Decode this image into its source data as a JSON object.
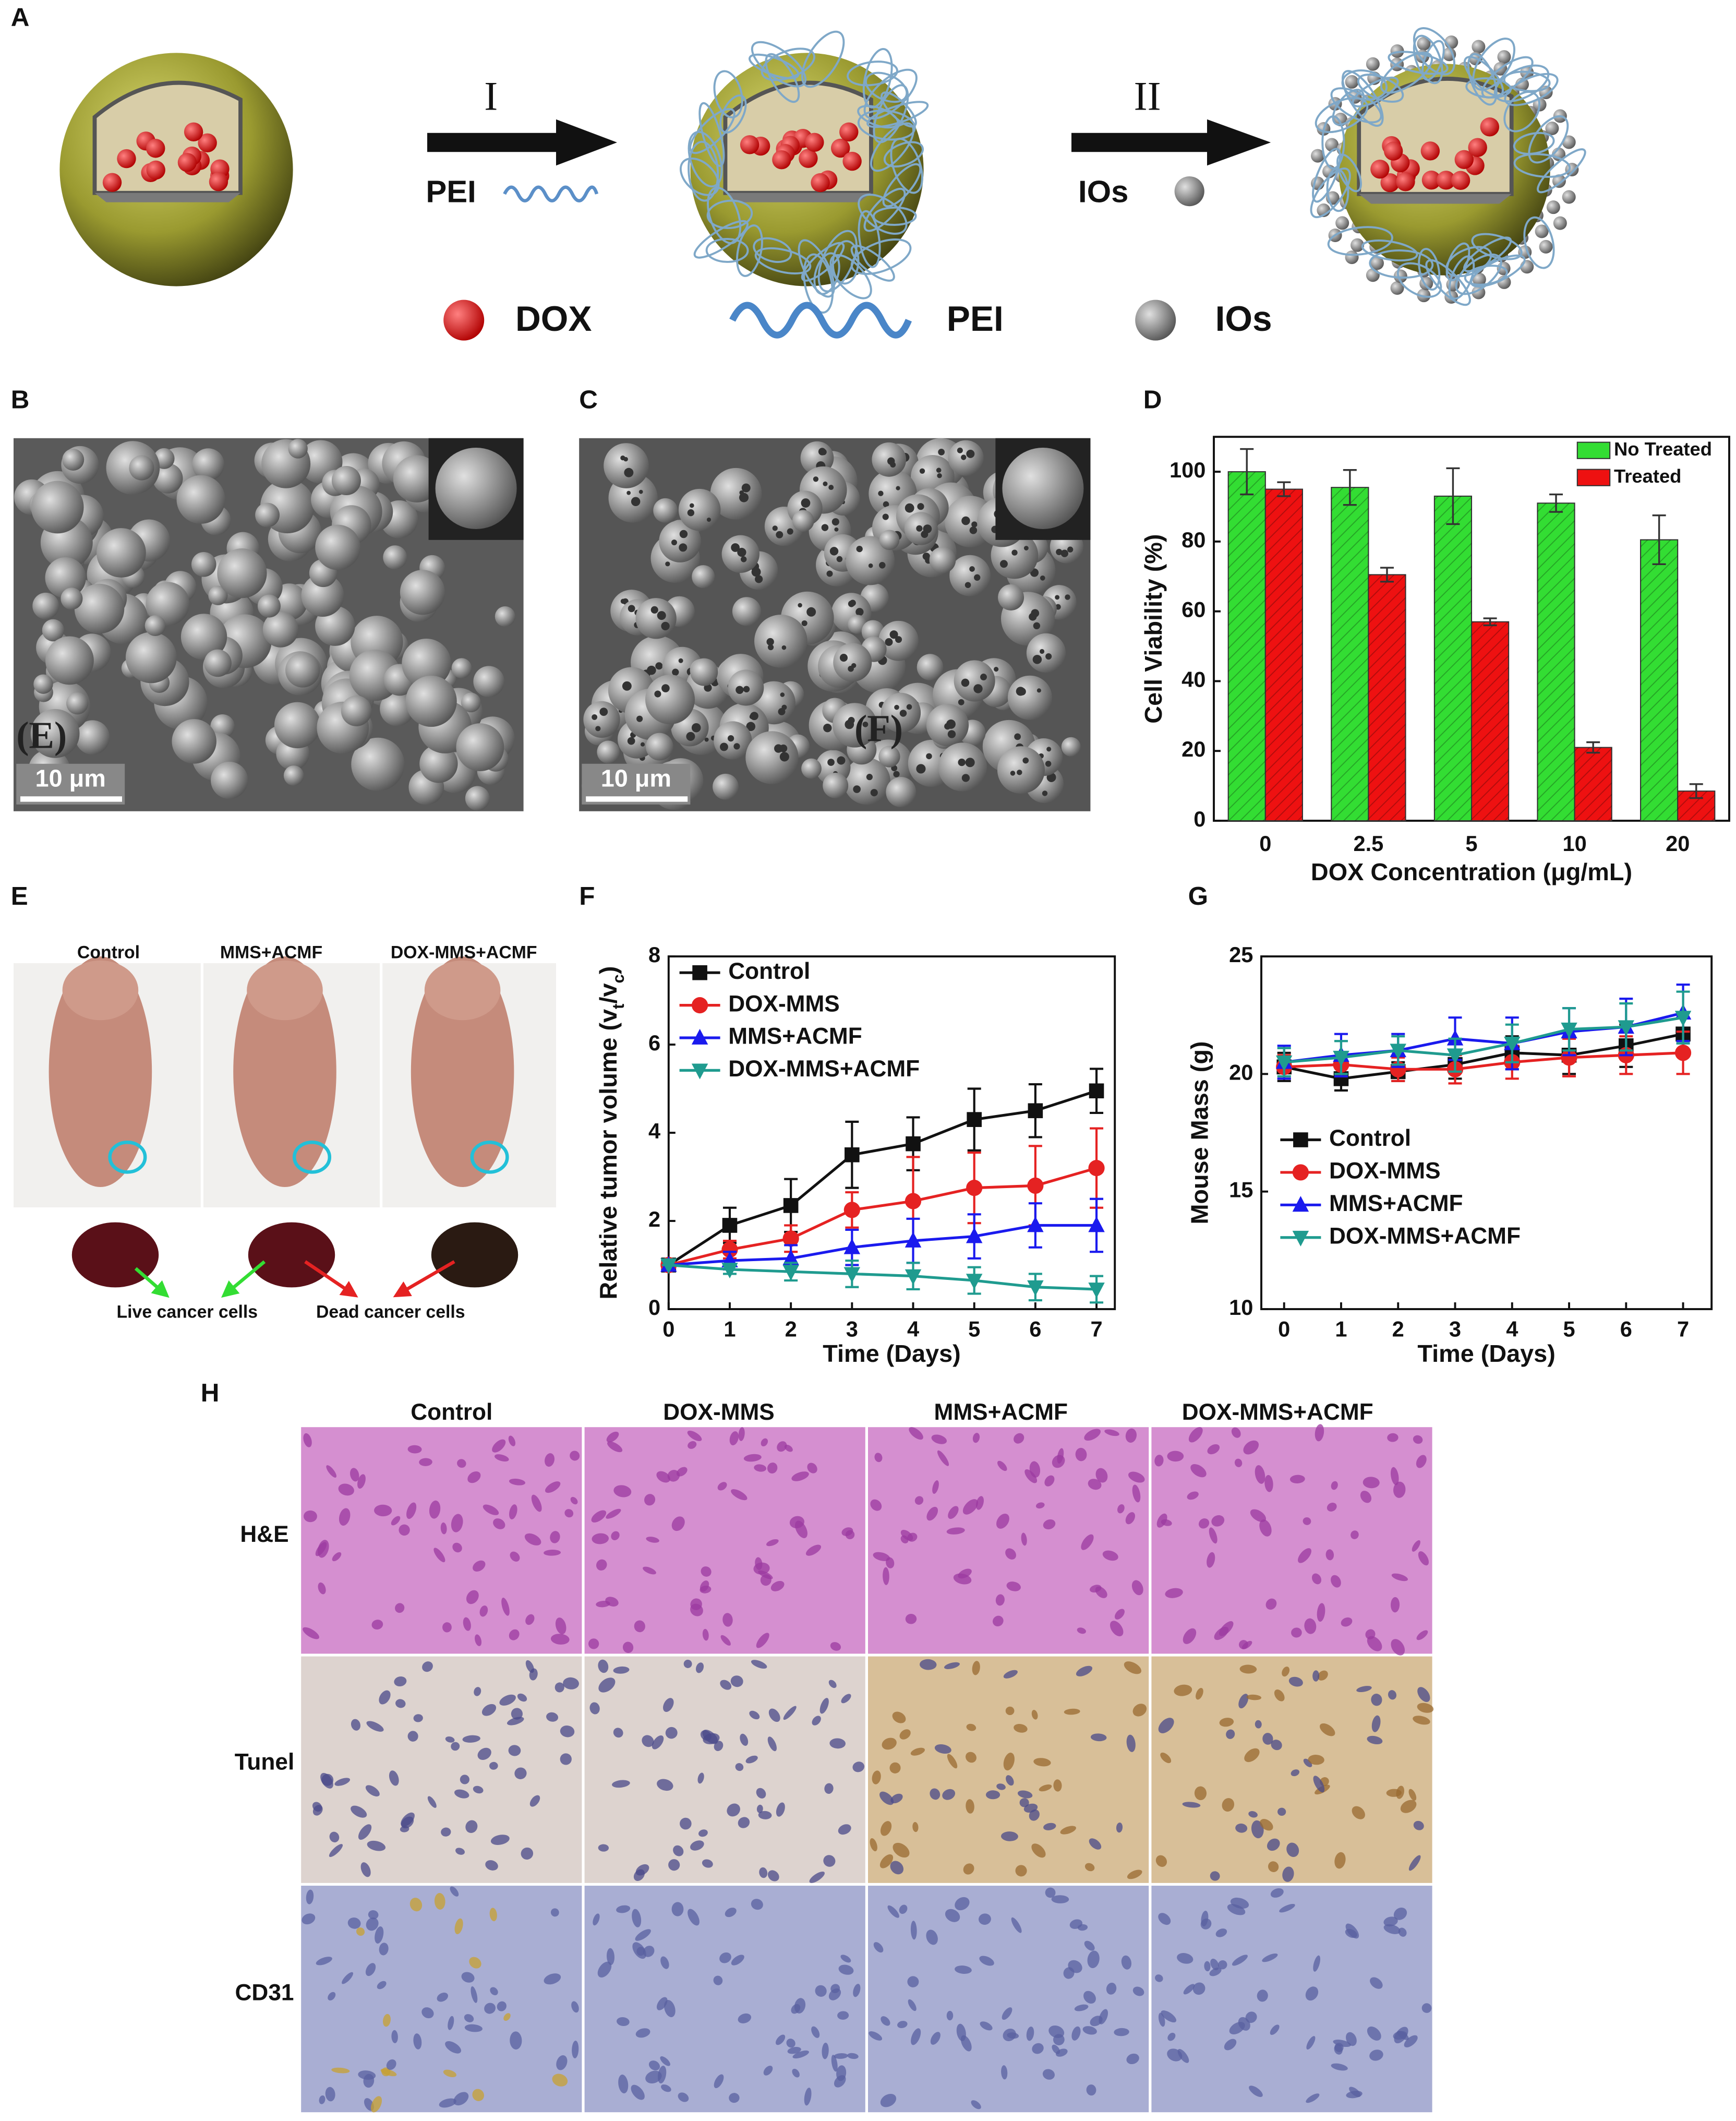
{
  "panel_labels": [
    "A",
    "B",
    "C",
    "D",
    "E",
    "F",
    "G",
    "H"
  ],
  "scheme": {
    "steps": [
      "I",
      "II"
    ],
    "reagents": [
      "PEI",
      "IOs"
    ],
    "legend": [
      "DOX",
      "PEI",
      "IOs"
    ]
  },
  "micrographs": {
    "scale_bars": [
      "10 μm",
      "10 μm"
    ],
    "overlays": [
      "(E)",
      "(F)"
    ]
  },
  "mice": {
    "groups": [
      "Control",
      "MMS+ACMF",
      "DOX-MMS+ACMF"
    ],
    "annotations": [
      "Live cancer cells",
      "Dead cancer cells"
    ]
  },
  "histology": {
    "columns": [
      "Control",
      "DOX-MMS",
      "MMS+ACMF",
      "DOX-MMS+ACMF"
    ],
    "rows": [
      "H&E",
      "Tunel",
      "CD31"
    ]
  },
  "chart_data": [
    {
      "type": "bar",
      "xlabel": "DOX Concentration (μg/mL)",
      "ylabel": [
        "Cell Viability (%)"
      ],
      "categories": [
        "0",
        "2.5",
        "5",
        "10",
        "20"
      ],
      "series": [
        {
          "name": "No Treated",
          "color": "#33dd33",
          "values": [
            100,
            95.5,
            93,
            91,
            80.5
          ],
          "errors": [
            6.5,
            5,
            8,
            2.5,
            7
          ]
        },
        {
          "name": "Treated",
          "color": "#ee1111",
          "values": [
            95,
            70.5,
            57,
            21,
            8.5
          ],
          "errors": [
            2,
            2,
            1,
            1.5,
            2
          ]
        }
      ],
      "ylim": [
        0,
        110
      ],
      "yticks": [
        0,
        20,
        40,
        60,
        80,
        100
      ],
      "legend": "upper right"
    },
    {
      "type": "line",
      "xlabel": "Time (Days)",
      "ylabel": [
        "Relative tumor volume (v",
        "t",
        "/v",
        "c",
        ")"
      ],
      "x": [
        0,
        1,
        2,
        3,
        4,
        5,
        6,
        7
      ],
      "xlim": [
        0,
        7.3
      ],
      "xticks": [
        0,
        1,
        2,
        3,
        4,
        5,
        6,
        7
      ],
      "ylim": [
        0,
        8
      ],
      "yticks": [
        0,
        2,
        4,
        6,
        8
      ],
      "legend": "upper left",
      "series": [
        {
          "name": "Control",
          "color": "#111111",
          "marker": "square",
          "values": [
            1,
            1.9,
            2.35,
            3.5,
            3.75,
            4.3,
            4.5,
            4.95
          ],
          "errors": [
            0,
            0.4,
            0.6,
            0.75,
            0.6,
            0.7,
            0.6,
            0.5
          ]
        },
        {
          "name": "DOX-MMS",
          "color": "#e52222",
          "marker": "circle",
          "values": [
            1,
            1.35,
            1.6,
            2.25,
            2.45,
            2.75,
            2.8,
            3.2
          ],
          "errors": [
            0,
            0.2,
            0.3,
            0.4,
            1,
            0.8,
            0.9,
            0.9
          ]
        },
        {
          "name": "MMS+ACMF",
          "color": "#1a1aee",
          "marker": "triangle",
          "values": [
            1,
            1.1,
            1.15,
            1.4,
            1.55,
            1.65,
            1.9,
            1.9
          ],
          "errors": [
            0,
            0.2,
            0.3,
            0.4,
            0.5,
            0.5,
            0.5,
            0.6
          ]
        },
        {
          "name": "DOX-MMS+ACMF",
          "color": "#1f9b8f",
          "marker": "triangle-down",
          "values": [
            1,
            0.9,
            0.85,
            0.8,
            0.75,
            0.65,
            0.5,
            0.45
          ],
          "errors": [
            0,
            0.1,
            0.2,
            0.3,
            0.3,
            0.3,
            0.3,
            0.3
          ]
        }
      ]
    },
    {
      "type": "line",
      "xlabel": "Time (Days)",
      "ylabel": [
        "Mouse Mass (g)"
      ],
      "x": [
        0,
        1,
        2,
        3,
        4,
        5,
        6,
        7
      ],
      "xlim": [
        -0.4,
        7.5
      ],
      "xticks": [
        0,
        1,
        2,
        3,
        4,
        5,
        6,
        7
      ],
      "ylim": [
        10,
        25
      ],
      "yticks": [
        10,
        15,
        20,
        25
      ],
      "legend": "center left",
      "series": [
        {
          "name": "Control",
          "color": "#111111",
          "marker": "square",
          "values": [
            20.3,
            19.8,
            20.1,
            20.4,
            20.9,
            20.8,
            21.2,
            21.7
          ],
          "errors": [
            0.6,
            0.5,
            0.4,
            0.6,
            0.7,
            0.8,
            0.9,
            0.9
          ]
        },
        {
          "name": "DOX-MMS",
          "color": "#e52222",
          "marker": "circle",
          "values": [
            20.3,
            20.4,
            20.2,
            20.2,
            20.5,
            20.7,
            20.8,
            20.9
          ],
          "errors": [
            0.5,
            0.5,
            0.5,
            0.6,
            0.7,
            0.8,
            0.8,
            0.9
          ]
        },
        {
          "name": "MMS+ACMF",
          "color": "#1a1aee",
          "marker": "triangle",
          "values": [
            20.5,
            20.8,
            21.0,
            21.5,
            21.3,
            21.8,
            22.0,
            22.6
          ],
          "errors": [
            0.7,
            0.9,
            0.7,
            0.9,
            1.1,
            1.0,
            1.2,
            1.2
          ]
        },
        {
          "name": "DOX-MMS+ACMF",
          "color": "#1f9b8f",
          "marker": "triangle-down",
          "values": [
            20.5,
            20.7,
            21.0,
            20.8,
            21.3,
            21.9,
            22.0,
            22.4
          ],
          "errors": [
            0.6,
            0.7,
            0.6,
            0.7,
            0.8,
            0.9,
            1.0,
            1.1
          ]
        }
      ]
    }
  ]
}
